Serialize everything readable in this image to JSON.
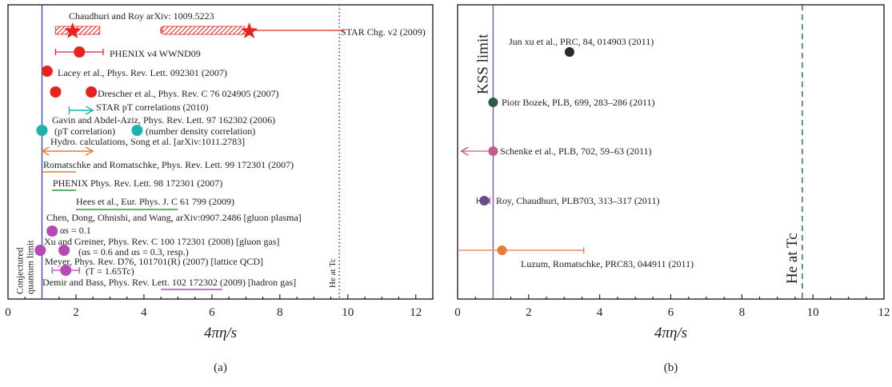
{
  "chart_data": [
    {
      "panel": "a",
      "type": "scatter",
      "panel_label": "(a)",
      "xlabel": "4πη/s",
      "xlim": [
        0,
        12.5
      ],
      "xticks": [
        0,
        2,
        4,
        6,
        8,
        10,
        12
      ],
      "colors": {
        "red": "#e8231f",
        "teal": "#1fb2ad",
        "orange": "#e87a2a",
        "green": "#2a9a3a",
        "magenta": "#b54ab5",
        "blue": "#2f3fc2"
      },
      "vlines": [
        {
          "x": 1.0,
          "style": "solid",
          "color": "#2f3fc2",
          "label": "Conjectured quantum limit"
        },
        {
          "x": 9.75,
          "style": "dotted",
          "color": "#2f3fc2",
          "label": "He at Tc"
        }
      ],
      "entries": [
        {
          "label": "Chaudhuri and Roy arXiv: 1009.5223",
          "points": [
            {
              "x": 1.9,
              "marker": "star",
              "color": "#e8231f",
              "xerr": [
                1.4,
                2.7
              ],
              "hatched": true
            }
          ]
        },
        {
          "label": "STAR Chg. v2 (2009)",
          "points": [
            {
              "x": 7.1,
              "marker": "star",
              "color": "#e8231f",
              "xerr": [
                4.5,
                9.9
              ],
              "hatched": true
            }
          ]
        },
        {
          "label": "PHENIX v4 WWND09",
          "points": [
            {
              "x": 2.1,
              "marker": "circle",
              "color": "#e8231f",
              "xerr": [
                1.4,
                2.8
              ]
            }
          ]
        },
        {
          "label": "Lacey et al., Phys. Rev. Lett. 092301 (2007)",
          "points": [
            {
              "x": 1.15,
              "marker": "circle",
              "color": "#e8231f"
            }
          ]
        },
        {
          "label": "Drescher et al., Phys. Rev. C 76 024905 (2007)",
          "points": [
            {
              "x": 1.4,
              "marker": "circle",
              "color": "#e8231f"
            },
            {
              "x": 2.45,
              "marker": "circle",
              "color": "#e8231f"
            }
          ]
        },
        {
          "label": "STAR pT correlations (2010)",
          "range": [
            1.8,
            2.5
          ],
          "color": "#1fb2ad",
          "arrow": "right"
        },
        {
          "label": "Gavin and Abdel-Aziz, Phys. Rev. Lett. 97 162302 (2006)",
          "points": [
            {
              "x": 1.0,
              "marker": "circle",
              "color": "#1fb2ad"
            },
            {
              "x": 3.8,
              "marker": "circle",
              "color": "#1fb2ad"
            }
          ]
        },
        {
          "label": "(pT correlation)",
          "note": true
        },
        {
          "label": "(number density correlation)",
          "note": true
        },
        {
          "label": "Hydro. calculations, Song et al. [arXiv:1011.2783]",
          "range": [
            1.0,
            2.5
          ],
          "color": "#e87a2a",
          "arrow": "both"
        },
        {
          "label": "Romatschke and Romatschke, Phys. Rev. Lett. 99 172301 (2007)",
          "range": [
            1.0,
            2.0
          ],
          "color": "#e87a2a"
        },
        {
          "label": "PHENIX Phys. Rev. Lett. 98 172301 (2007)",
          "range": [
            1.3,
            2.0
          ],
          "color": "#2a9a3a"
        },
        {
          "label": "Hees et al., Eur. Phys. J. C 61 799 (2009)",
          "range": [
            2.0,
            5.0
          ],
          "color": "#2a9a3a"
        },
        {
          "label": "Chen, Dong, Ohnishi, and Wang, arXiv:0907.2486 [gluon plasma]",
          "points": [
            {
              "x": 1.3,
              "marker": "circle",
              "color": "#b54ab5"
            }
          ]
        },
        {
          "label": "αs = 0.1",
          "note": true
        },
        {
          "label": "Xu and Greiner, Phys. Rev. C 100 172301 (2008) [gluon gas]",
          "points": [
            {
              "x": 0.95,
              "marker": "circle",
              "color": "#b54ab5"
            },
            {
              "x": 1.65,
              "marker": "circle",
              "color": "#b54ab5"
            }
          ]
        },
        {
          "label": "(αs = 0.6 and αs = 0.3, resp.)",
          "note": true
        },
        {
          "label": "Meyer, Phys. Rev. D76, 101701(R) (2007) [lattice QCD]",
          "points": [
            {
              "x": 1.7,
              "marker": "circle",
              "color": "#b54ab5",
              "xerr": [
                1.3,
                2.1
              ]
            }
          ]
        },
        {
          "label": "(T = 1.65Tc)",
          "note": true
        },
        {
          "label": "Demir and Bass, Phys. Rev. Lett. 102 172302 (2009) [hadron gas]",
          "range": [
            4.5,
            6.3
          ],
          "color": "#b54ab5"
        }
      ]
    },
    {
      "panel": "b",
      "type": "scatter",
      "panel_label": "(b)",
      "xlabel": "4πη/s",
      "xlim": [
        0,
        12
      ],
      "xticks": [
        0,
        2,
        4,
        6,
        8,
        10,
        12
      ],
      "vlines": [
        {
          "x": 1.0,
          "style": "solid",
          "color": "#7a5a96",
          "label": "KSS limit"
        },
        {
          "x": 9.7,
          "style": "dashed",
          "color": "#3a6a55",
          "label": "He at Tc"
        }
      ],
      "points": [
        {
          "label": "Jun xu et al., PRC, 84, 014903 (2011)",
          "x": 3.15,
          "color": "#2b2b2b"
        },
        {
          "label": "Piotr Bozek, PLB, 699, 283–286 (2011)",
          "x": 1.0,
          "color": "#2f5a4a"
        },
        {
          "label": "Schenke et al., PLB, 702, 59–63 (2011)",
          "x": 1.0,
          "color": "#c85a8a",
          "arrow_to": 0.1
        },
        {
          "label": "Roy, Chaudhuri, PLB703, 313–317 (2011)",
          "x": 0.75,
          "color": "#6a4a8a",
          "xerr": [
            0.55,
            0.9
          ]
        },
        {
          "label": "Luzum, Romatschke, PRC83, 044911 (2011)",
          "x": 1.25,
          "color": "#e87a3a",
          "xerr": [
            0.0,
            3.55
          ]
        }
      ]
    }
  ]
}
